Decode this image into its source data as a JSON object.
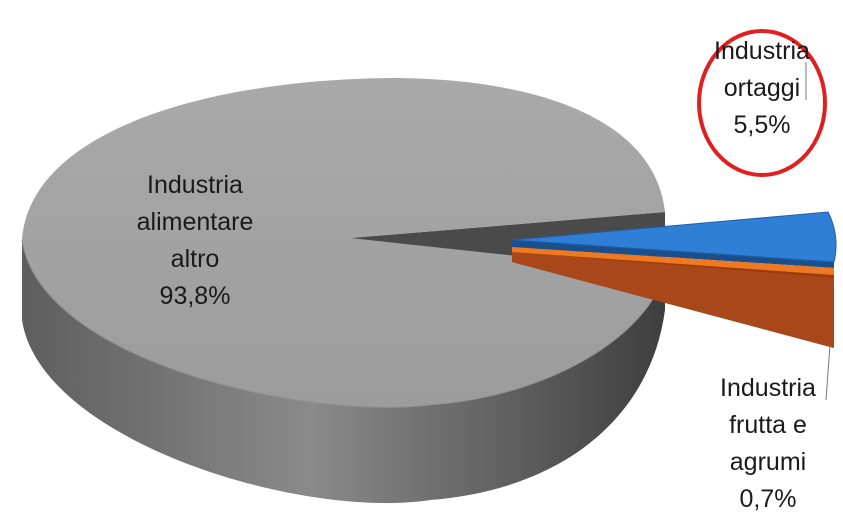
{
  "chart_data": {
    "type": "pie",
    "style": "3d-exploded",
    "slices": [
      {
        "name_lines": [
          "Industria",
          "alimentare",
          "altro"
        ],
        "value": 93.8,
        "value_label": "93,8%",
        "color": "#a6a6a6",
        "side_color": "#6e6e6e",
        "exploded": false
      },
      {
        "name_lines": [
          "Industria",
          "ortaggi"
        ],
        "value": 5.5,
        "value_label": "5,5%",
        "color": "#2f7fd6",
        "side_color": "#1a4f8c",
        "exploded": true,
        "highlighted": true,
        "highlight_color": "#e02020"
      },
      {
        "name_lines": [
          "Industria",
          "frutta e",
          "agrumi"
        ],
        "value": 0.7,
        "value_label": "0,7%",
        "color": "#f07820",
        "side_color": "#9a3d0a",
        "exploded": true
      }
    ]
  }
}
